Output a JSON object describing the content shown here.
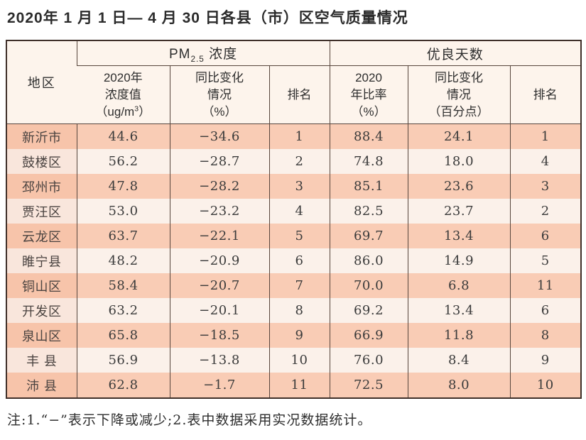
{
  "page": {
    "title": "2020年 1 月 1 日— 4 月 30 日各县（市）区空气质量情况",
    "footnote": "注:1.“−”表示下降或减少;2.表中数据采用实况数据统计。"
  },
  "colors": {
    "row_odd_bg": "#f9ccb5",
    "row_odd_region_bg": "#f7c4aa",
    "row_even_bg": "#fbf1ea",
    "row_even_region_bg": "#f9e6dc",
    "header_bg": "#fdf4ec",
    "outer_border": "#3f2f29",
    "inner_border": "#57453c"
  },
  "table": {
    "region_header": "地区",
    "pm_group": {
      "pre": "PM",
      "sub": "2.5",
      "post": " 浓度"
    },
    "good_group": "优良天数",
    "cols": {
      "pm_value": {
        "l1": "2020年",
        "l2": "浓度值",
        "l3_pre": "（ug/m",
        "l3_sup": "3",
        "l3_post": "）"
      },
      "pm_change": {
        "l1": "同比变化",
        "l2": "情况",
        "l3": "（%）"
      },
      "pm_rank": "排名",
      "good_rate": {
        "l1": "2020",
        "l2": "年比率",
        "l3": "（%）"
      },
      "good_change": {
        "l1": "同比变化",
        "l2": "情况",
        "l3": "（百分点）"
      },
      "good_rank": "排名"
    },
    "rows": [
      {
        "region": "新沂市",
        "pm_value": "44.6",
        "pm_change": "−34.6",
        "pm_rank": "1",
        "good_rate": "88.4",
        "good_change": "24.1",
        "good_rank": "1"
      },
      {
        "region": "鼓楼区",
        "pm_value": "56.2",
        "pm_change": "−28.7",
        "pm_rank": "2",
        "good_rate": "74.8",
        "good_change": "18.0",
        "good_rank": "4"
      },
      {
        "region": "邳州市",
        "pm_value": "47.8",
        "pm_change": "−28.2",
        "pm_rank": "3",
        "good_rate": "85.1",
        "good_change": "23.6",
        "good_rank": "3"
      },
      {
        "region": "贾汪区",
        "pm_value": "53.0",
        "pm_change": "−23.2",
        "pm_rank": "4",
        "good_rate": "82.5",
        "good_change": "23.7",
        "good_rank": "2"
      },
      {
        "region": "云龙区",
        "pm_value": "63.7",
        "pm_change": "−22.1",
        "pm_rank": "5",
        "good_rate": "69.7",
        "good_change": "13.4",
        "good_rank": "6"
      },
      {
        "region": "睢宁县",
        "pm_value": "48.2",
        "pm_change": "−20.9",
        "pm_rank": "6",
        "good_rate": "86.0",
        "good_change": "14.9",
        "good_rank": "5"
      },
      {
        "region": "铜山区",
        "pm_value": "58.4",
        "pm_change": "−20.7",
        "pm_rank": "7",
        "good_rate": "70.0",
        "good_change": "6.8",
        "good_rank": "11"
      },
      {
        "region": "开发区",
        "pm_value": "63.2",
        "pm_change": "−20.1",
        "pm_rank": "8",
        "good_rate": "69.2",
        "good_change": "13.4",
        "good_rank": "6"
      },
      {
        "region": "泉山区",
        "pm_value": "65.8",
        "pm_change": "−18.5",
        "pm_rank": "9",
        "good_rate": "66.9",
        "good_change": "11.8",
        "good_rank": "8"
      },
      {
        "region": "丰 县",
        "pm_value": "56.9",
        "pm_change": "−13.8",
        "pm_rank": "10",
        "good_rate": "76.0",
        "good_change": "8.4",
        "good_rank": "9"
      },
      {
        "region": "沛 县",
        "pm_value": "62.8",
        "pm_change": "−1.7",
        "pm_rank": "11",
        "good_rate": "72.5",
        "good_change": "8.0",
        "good_rank": "10"
      }
    ]
  }
}
